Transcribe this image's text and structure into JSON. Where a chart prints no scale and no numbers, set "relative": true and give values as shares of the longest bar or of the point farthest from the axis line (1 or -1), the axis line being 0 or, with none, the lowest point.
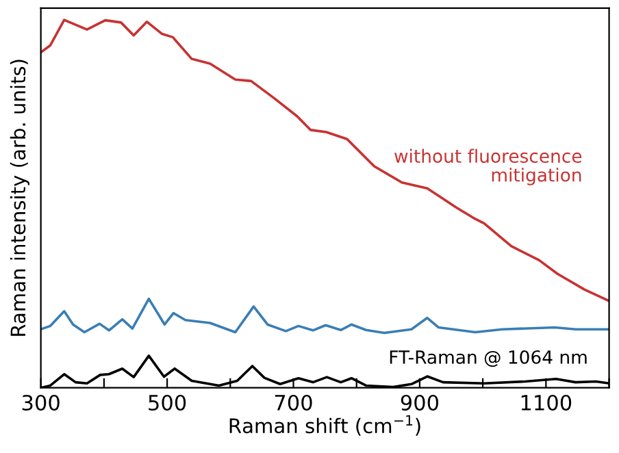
{
  "chart_data": {
    "type": "line",
    "relative": true,
    "xlabel": "Raman shift (cm$^{−1}$)",
    "ylabel": "Raman intensity (arb. units)",
    "xlim": [
      300,
      1200
    ],
    "xticks": [
      300,
      {
        "value": 400,
        "label": null
      },
      500,
      {
        "value": 600,
        "label": null
      },
      700,
      {
        "value": 800,
        "label": null
      },
      900,
      {
        "value": 1000,
        "label": null
      },
      1100,
      {
        "value": 1200,
        "label": null
      }
    ],
    "grid": false,
    "legend": false,
    "marker": "none",
    "line_style": "solid",
    "series": [
      {
        "name": "without fluorescence\nmitigation",
        "color": "#c83232",
        "x": [
          300,
          315,
          337,
          373,
          402,
          427,
          447,
          468,
          492,
          509,
          539,
          568,
          608,
          633,
          669,
          706,
          727,
          752,
          785,
          828,
          872,
          912,
          958,
          988,
          1002,
          1045,
          1089,
          1118,
          1161,
          1200
        ],
        "values": [
          0.912,
          0.931,
          1.0,
          0.974,
          0.999,
          0.993,
          0.958,
          0.995,
          0.962,
          0.953,
          0.894,
          0.881,
          0.838,
          0.834,
          0.788,
          0.738,
          0.701,
          0.695,
          0.676,
          0.602,
          0.558,
          0.542,
          0.49,
          0.459,
          0.447,
          0.385,
          0.347,
          0.31,
          0.267,
          0.236
        ]
      },
      {
        "color": "#3a7eb5",
        "x": [
          300,
          315,
          337,
          351,
          369,
          393,
          408,
          429,
          445,
          471,
          496,
          510,
          529,
          568,
          608,
          637,
          659,
          688,
          708,
          731,
          751,
          775,
          792,
          815,
          844,
          887,
          912,
          930,
          988,
          1031,
          1114,
          1147,
          1200
        ],
        "values": [
          0.159,
          0.168,
          0.208,
          0.172,
          0.151,
          0.174,
          0.156,
          0.186,
          0.161,
          0.242,
          0.172,
          0.203,
          0.184,
          0.176,
          0.151,
          0.221,
          0.172,
          0.154,
          0.168,
          0.156,
          0.17,
          0.157,
          0.172,
          0.157,
          0.149,
          0.159,
          0.19,
          0.164,
          0.151,
          0.159,
          0.164,
          0.159,
          0.159
        ]
      },
      {
        "name": "FT-Raman @ 1064 nm",
        "color": "#000000",
        "x": [
          300,
          315,
          337,
          355,
          373,
          394,
          408,
          429,
          447,
          471,
          495,
          512,
          539,
          582,
          611,
          635,
          654,
          679,
          708,
          731,
          753,
          775,
          792,
          815,
          858,
          887,
          912,
          937,
          1002,
          1067,
          1116,
          1147,
          1179,
          1200
        ],
        "values": [
          0.0,
          0.006,
          0.037,
          0.015,
          0.012,
          0.035,
          0.037,
          0.052,
          0.029,
          0.087,
          0.03,
          0.052,
          0.019,
          0.006,
          0.019,
          0.059,
          0.027,
          0.01,
          0.026,
          0.015,
          0.029,
          0.015,
          0.026,
          0.006,
          0.002,
          0.01,
          0.031,
          0.015,
          0.012,
          0.017,
          0.024,
          0.015,
          0.017,
          0.012
        ]
      }
    ]
  }
}
